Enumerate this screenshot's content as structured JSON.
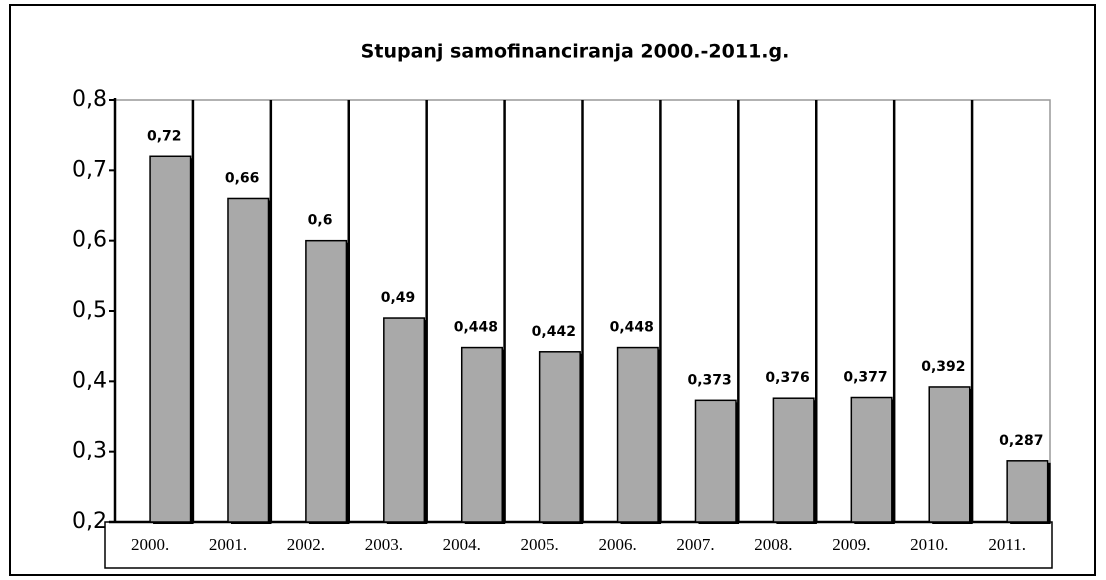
{
  "chart_data": {
    "type": "bar",
    "title": "Stupanj samofinanciranja 2000.-2011.g.",
    "categories": [
      "2000.",
      "2001.",
      "2002.",
      "2003.",
      "2004.",
      "2005.",
      "2006.",
      "2007.",
      "2008.",
      "2009.",
      "2010.",
      "2011."
    ],
    "values": [
      0.72,
      0.66,
      0.6,
      0.49,
      0.448,
      0.442,
      0.448,
      0.373,
      0.376,
      0.377,
      0.392,
      0.287
    ],
    "value_labels": [
      "0,72",
      "0,66",
      "0,6",
      "0,49",
      "0,448",
      "0,442",
      "0,448",
      "0,373",
      "0,376",
      "0,377",
      "0,392",
      "0,287"
    ],
    "color": "#a9a9a9",
    "ylim": [
      0.2,
      0.8
    ],
    "yticks": [
      {
        "value": 0.2,
        "label": "0,2"
      },
      {
        "value": 0.3,
        "label": "0,3"
      },
      {
        "value": 0.4,
        "label": "0,4"
      },
      {
        "value": 0.5,
        "label": "0,5"
      },
      {
        "value": 0.6,
        "label": "0,6"
      },
      {
        "value": 0.7,
        "label": "0,7"
      },
      {
        "value": 0.8,
        "label": "0,8"
      }
    ]
  }
}
